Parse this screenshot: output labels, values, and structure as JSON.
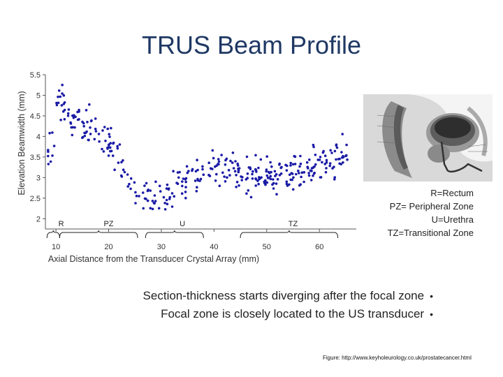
{
  "title": "TRUS Beam Profile",
  "chart_data": {
    "type": "scatter",
    "xlabel": "Axial Distance from the Transducer Crystal Array (mm)",
    "ylabel": "Elevation Beamwidth (mm)",
    "xlim": [
      8,
      67
    ],
    "ylim": [
      1.75,
      5.5
    ],
    "x_ticks": [
      "10",
      "20",
      "30",
      "40",
      "50",
      "60"
    ],
    "y_ticks": [
      "2",
      "2.5",
      "3",
      "3.5",
      "4",
      "4.5",
      "5",
      "5.5"
    ],
    "point_color": "#1a1aa6",
    "region_labels": [
      {
        "text": "R",
        "x": 11
      },
      {
        "text": "PZ",
        "x": 20
      },
      {
        "text": "U",
        "x": 34
      },
      {
        "text": "TZ",
        "x": 55
      }
    ],
    "region_braces": [
      {
        "label": "R",
        "from": 8.3,
        "to": 10.7
      },
      {
        "label": "PZ",
        "from": 10.7,
        "to": 25.5
      },
      {
        "label": "U",
        "from": 27,
        "to": 38
      },
      {
        "label": "TZ",
        "from": 45,
        "to": 63.5
      }
    ],
    "trend": [
      [
        10,
        4.95
      ],
      [
        12,
        4.65
      ],
      [
        14,
        4.45
      ],
      [
        16,
        4.3
      ],
      [
        18,
        4.1
      ],
      [
        20,
        3.85
      ],
      [
        22,
        3.4
      ],
      [
        24,
        2.9
      ],
      [
        26,
        2.55
      ],
      [
        28,
        2.45
      ],
      [
        30,
        2.55
      ],
      [
        32,
        2.7
      ],
      [
        34,
        2.85
      ],
      [
        36,
        3.05
      ],
      [
        38,
        3.2
      ],
      [
        40,
        3.25
      ],
      [
        42,
        3.2
      ],
      [
        44,
        3.1
      ],
      [
        46,
        3.05
      ],
      [
        48,
        3.05
      ],
      [
        50,
        3.0
      ],
      [
        52,
        3.0
      ],
      [
        54,
        3.05
      ],
      [
        56,
        3.1
      ],
      [
        58,
        3.2
      ],
      [
        60,
        3.3
      ],
      [
        62,
        3.4
      ],
      [
        64,
        3.55
      ],
      [
        66,
        3.7
      ]
    ]
  },
  "anatomy_figure": {
    "icon": "prostate-anatomy-illustration"
  },
  "legend_lines": [
    "R=Rectum",
    "PZ= Peripheral Zone",
    "U=Urethra",
    "TZ=Transitional Zone"
  ],
  "bullets": [
    "Section-thickness starts diverging after the focal zone",
    "Focal zone is closely located to the US transducer"
  ],
  "bullet_symbol": "•",
  "credit": "Figure: http://www.keyholeurology.co.uk/prostatecancer.html"
}
